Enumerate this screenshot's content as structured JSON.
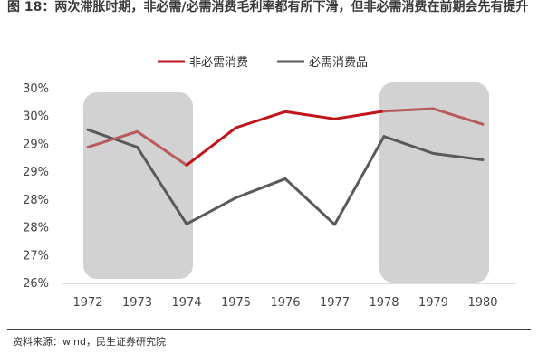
{
  "title": "图 18：两次滞胀时期，非必需/必需消费毛利率都有所下滑，但非必需消费在前期会先有提升",
  "source": "资料来源：wind，民生证券研究院",
  "colors": {
    "series_nonessential": "#c0151b",
    "series_nonessential_faded": "#b85b5f",
    "series_essential": "#595959",
    "shade": "#d2d2d2",
    "axis": "#bfbfbf"
  },
  "chart_data": {
    "type": "line",
    "x": [
      "1972",
      "1973",
      "1974",
      "1975",
      "1976",
      "1977",
      "1978",
      "1979",
      "1980"
    ],
    "y_tick_labels": [
      "26%",
      "27%",
      "28%",
      "28%",
      "29%",
      "29%",
      "30%",
      "30%"
    ],
    "ylim": [
      0.26,
      0.3
    ],
    "grid": false,
    "legend": "top",
    "shaded_periods": [
      [
        "1972",
        "1974"
      ],
      [
        "1978",
        "1980"
      ]
    ],
    "series": [
      {
        "name": "非必需消费",
        "values": [
          0.288,
          0.2912,
          0.2843,
          0.292,
          0.2953,
          0.2938,
          0.2954,
          0.2959,
          0.2927
        ]
      },
      {
        "name": "必需消费品",
        "values": [
          0.2916,
          0.288,
          0.2722,
          0.2776,
          0.2815,
          0.2721,
          0.2902,
          0.2867,
          0.2854
        ]
      }
    ]
  }
}
